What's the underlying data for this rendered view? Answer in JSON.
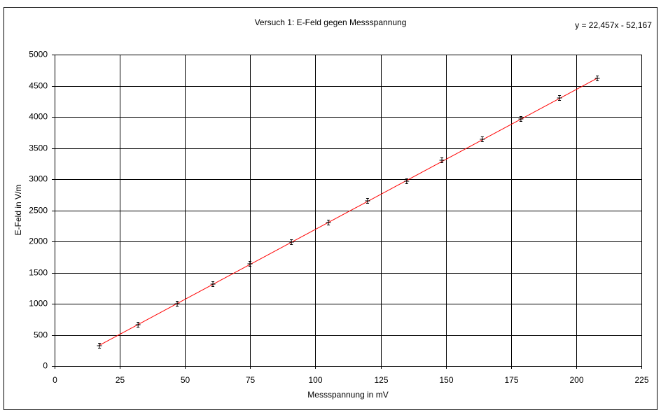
{
  "chart_data": {
    "type": "scatter",
    "title": "Versuch 1: E-Feld gegen Messspannung",
    "x_label": "Messspannung in mV",
    "y_label": "E-Feld in V/m",
    "series": [
      {
        "color": "#000000",
        "x": [
          17.2,
          32.0,
          47.0,
          60.7,
          74.9,
          90.8,
          105.0,
          120.0,
          135.0,
          148.5,
          164.0,
          178.8,
          193.6,
          208.1
        ],
        "y": [
          326,
          663,
          1000,
          1315,
          1640,
          1989,
          2303,
          2652,
          2966,
          3303,
          3640,
          3966,
          4303,
          4618
        ]
      }
    ],
    "trendline": {
      "slope": 22.457,
      "intercept": -52.167,
      "label": "y = 22,457x - 52,167",
      "color": "#ff0000"
    },
    "xlim": [
      0,
      225
    ],
    "ylim": [
      0,
      5000
    ],
    "xticks": [
      0,
      25,
      50,
      75,
      100,
      125,
      150,
      175,
      200,
      225
    ],
    "yticks": [
      0,
      500,
      1000,
      1500,
      2000,
      2500,
      3000,
      3500,
      4000,
      4500,
      5000
    ],
    "grid": true
  }
}
